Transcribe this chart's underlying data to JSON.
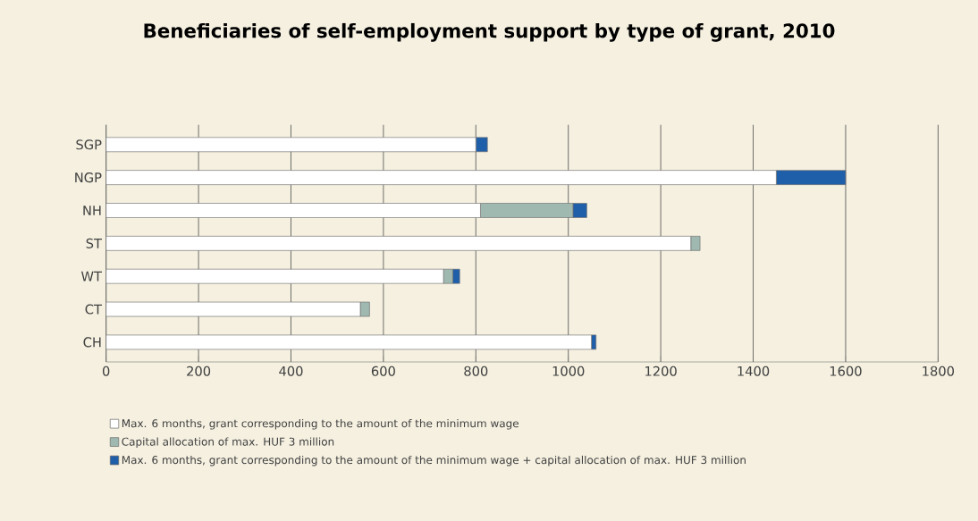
{
  "chart_data": {
    "type": "bar",
    "orientation": "horizontal",
    "stacked": true,
    "title": "Beneficiaries of self-employment support by type of grant, 2010",
    "categories": [
      "SGP",
      "NGP",
      "NH",
      "ST",
      "WT",
      "CT",
      "CH"
    ],
    "series": [
      {
        "name": "Max. 6 months, grant corresponding to the amount of the minimum wage",
        "color": "#ffffff",
        "values": [
          800,
          1450,
          810,
          1265,
          730,
          550,
          1050
        ]
      },
      {
        "name": "Capital allocation of max. HUF 3 million",
        "color": "#9fb8b0",
        "values": [
          0,
          0,
          200,
          20,
          20,
          20,
          0
        ]
      },
      {
        "name": "Max. 6 months, grant corresponding to the amount of the minimum wage + capital allocation of max. HUF 3 million",
        "color": "#1f5ea8",
        "values": [
          25,
          150,
          30,
          0,
          15,
          0,
          10
        ]
      }
    ],
    "xlim": [
      0,
      1800
    ],
    "xticks": [
      0,
      200,
      400,
      600,
      800,
      1000,
      1200,
      1400,
      1600,
      1800
    ],
    "grid": "x",
    "legend": "bottom"
  }
}
